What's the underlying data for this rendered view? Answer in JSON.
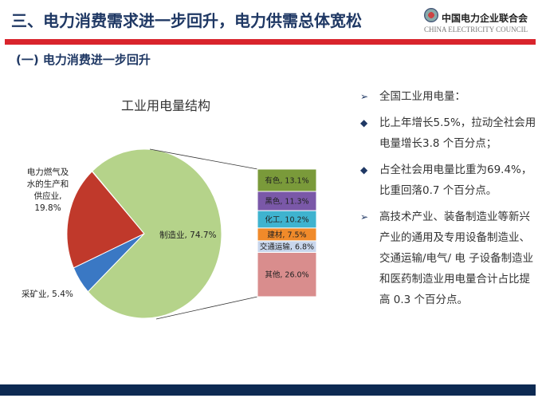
{
  "header": {
    "title": "三、电力消费需求进一步回升，电力供需总体宽松",
    "logo_cn": "中国电力企业联合会",
    "logo_en": "CHINA ELECTRICITY COUNCIL"
  },
  "subtitle": "(一)  电力消费进一步回升",
  "chart_data": {
    "type": "pie",
    "title": "工业用电量结构",
    "slices": [
      {
        "label": "电力燃气及水的生产和供应业, 19.8%",
        "name": "电力燃气及水的生产和供应业",
        "value": 19.8,
        "color": "#c0392b"
      },
      {
        "label": "采矿业, 5.4%",
        "name": "采矿业",
        "value": 5.4,
        "color": "#3a78c4"
      },
      {
        "label": "制造业, 74.7%",
        "name": "制造业",
        "value": 74.7,
        "color": "#b5d38a"
      }
    ],
    "breakdown_of": "制造业",
    "breakdown": [
      {
        "label": "有色, 13.1%",
        "value": 13.1,
        "color": "#7a9a3a"
      },
      {
        "label": "黑色, 11.3%",
        "value": 11.3,
        "color": "#7a58a8"
      },
      {
        "label": "化工, 10.2%",
        "value": 10.2,
        "color": "#3fb3cf"
      },
      {
        "label": "建材, 7.5%",
        "value": 7.5,
        "color": "#f08a2a"
      },
      {
        "label": "交通运输, 6.8%",
        "value": 6.8,
        "color": "#c8d6ec"
      },
      {
        "label": "其他, 26.0%",
        "value": 26.0,
        "color": "#d98d8d"
      }
    ]
  },
  "bullets": [
    {
      "marker": "➢",
      "text": "全国工业用电量："
    },
    {
      "marker": "◆",
      "text": "比上年增长5.5%，拉动全社会用电量增长3.8 个百分点；"
    },
    {
      "marker": "◆",
      "text": "占全社会用电量比重为69.4%，比重回落0.7 个百分点。"
    },
    {
      "marker": "➢",
      "text": "高技术产业、装备制造业等新兴产业的通用及专用设备制造业、交通运输/电气/ 电 子设备制造业和医药制造业用电量合计占比提高 0.3 个百分点。"
    }
  ]
}
